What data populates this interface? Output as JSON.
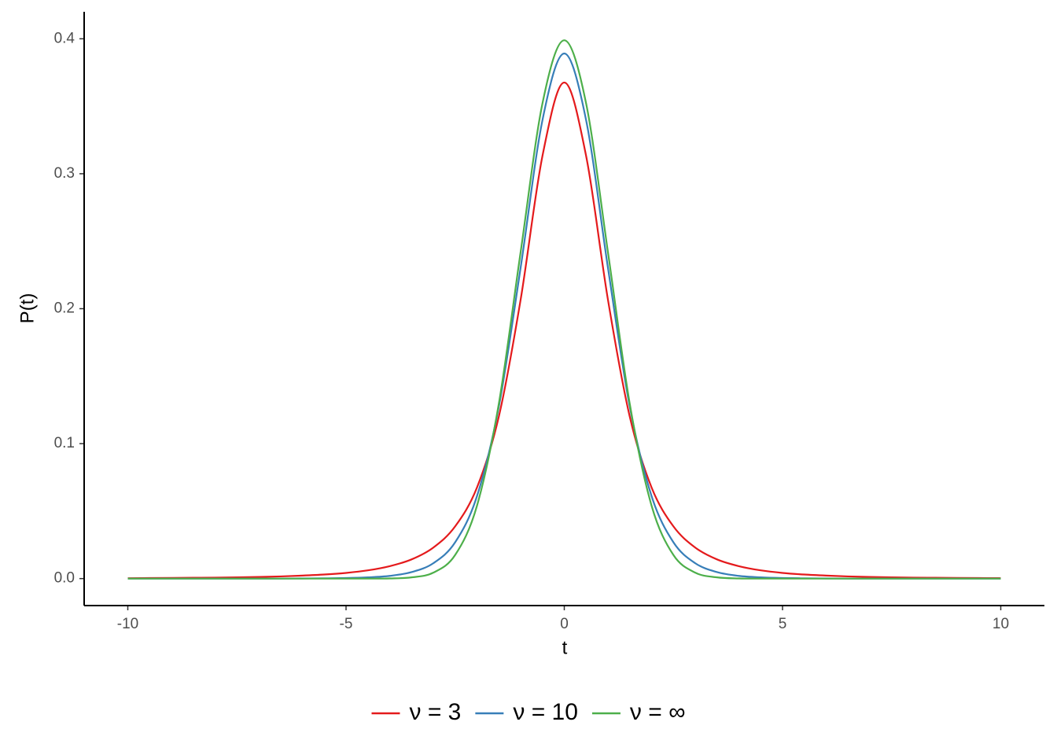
{
  "chart_data": {
    "type": "line",
    "x_label": "t",
    "y_label": "P(t)",
    "x": [
      -10,
      -9.5,
      -9,
      -8.5,
      -8,
      -7.5,
      -7,
      -6.5,
      -6,
      -5.5,
      -5,
      -4.5,
      -4,
      -3.5,
      -3,
      -2.5,
      -2,
      -1.5,
      -1,
      -0.5,
      0,
      0.5,
      1,
      1.5,
      2,
      2.5,
      3,
      3.5,
      4,
      4.5,
      5,
      5.5,
      6,
      6.5,
      7,
      7.5,
      8,
      8.5,
      9,
      9.5,
      10
    ],
    "series": [
      {
        "name": "ν = 3",
        "color": "#e41a1c",
        "values": [
          0.0003,
          0.0004,
          0.0005,
          0.0006,
          0.0007,
          0.0009,
          0.0012,
          0.0016,
          0.0022,
          0.003,
          0.0042,
          0.0061,
          0.0092,
          0.0142,
          0.023,
          0.0387,
          0.0675,
          0.12,
          0.2067,
          0.3132,
          0.3676,
          0.3132,
          0.2067,
          0.12,
          0.0675,
          0.0387,
          0.023,
          0.0142,
          0.0092,
          0.0061,
          0.0042,
          0.003,
          0.0022,
          0.0016,
          0.0012,
          0.0009,
          0.0007,
          0.0006,
          0.0005,
          0.0004,
          0.0003
        ]
      },
      {
        "name": "ν = 10",
        "color": "#377eb8",
        "values": [
          0,
          0,
          0,
          0,
          0,
          0,
          0,
          0,
          0.0001,
          0.0002,
          0.0004,
          0.0009,
          0.002,
          0.0048,
          0.0114,
          0.0269,
          0.0611,
          0.1274,
          0.2304,
          0.3397,
          0.3891,
          0.3397,
          0.2304,
          0.1274,
          0.0611,
          0.0269,
          0.0114,
          0.0048,
          0.002,
          0.0009,
          0.0004,
          0.0002,
          0.0001,
          0,
          0,
          0,
          0,
          0,
          0,
          0,
          0
        ]
      },
      {
        "name": "ν = ∞",
        "color": "#4daf4a",
        "values": [
          0,
          0,
          0,
          0,
          0,
          0,
          0,
          0,
          0,
          0,
          0,
          0,
          0.0001,
          0.0009,
          0.0044,
          0.0175,
          0.054,
          0.1295,
          0.242,
          0.3521,
          0.3989,
          0.3521,
          0.242,
          0.1295,
          0.054,
          0.0175,
          0.0044,
          0.0009,
          0.0001,
          0,
          0,
          0,
          0,
          0,
          0,
          0,
          0,
          0,
          0,
          0,
          0
        ]
      }
    ],
    "xlim": [
      -11,
      11
    ],
    "xticks": [
      -10,
      -5,
      0,
      5,
      10
    ],
    "ylim": [
      -0.02,
      0.42
    ],
    "yticks": [
      {
        "value": 0,
        "label": "0.0"
      },
      0.1,
      0.2,
      0.3,
      0.4
    ],
    "grid": false,
    "legend": "bottom"
  }
}
